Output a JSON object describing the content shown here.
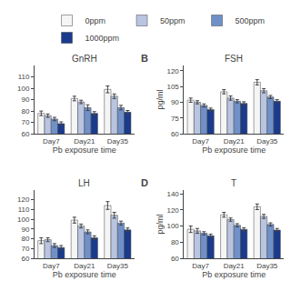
{
  "chart_data": [
    {
      "type": "bar",
      "title": "GnRH",
      "x_label": "Pb exposure time",
      "categories": [
        "Day7",
        "Day21",
        "Day35"
      ],
      "series": [
        {
          "name": "0ppm",
          "color": "#f5f5f5",
          "values": [
            78,
            91,
            99
          ],
          "errors": [
            2.0,
            2.0,
            3.0
          ]
        },
        {
          "name": "50ppm",
          "color": "#b8c4e0",
          "values": [
            76,
            88,
            93
          ],
          "errors": [
            1.5,
            1.5,
            2.0
          ]
        },
        {
          "name": "500ppm",
          "color": "#7090c8",
          "values": [
            73,
            83,
            83
          ],
          "errors": [
            1.5,
            2.5,
            2.0
          ]
        },
        {
          "name": "1000ppm",
          "color": "#1a3a8c",
          "values": [
            69,
            78,
            79
          ],
          "errors": [
            1.5,
            1.5,
            1.5
          ]
        }
      ],
      "ylim": [
        60,
        120
      ],
      "yticks": [
        60,
        70,
        80,
        90,
        100,
        110
      ],
      "grid": false,
      "legend": "top"
    },
    {
      "type": "bar",
      "title": "FSH",
      "x_label": "Pb exposure time",
      "y_label": "pg/ml",
      "annotations": [
        "B"
      ],
      "categories": [
        "Day7",
        "Day21",
        "Day35"
      ],
      "series": [
        {
          "name": "0ppm",
          "color": "#f5f5f5",
          "values": [
            92,
            100,
            109
          ],
          "errors": [
            2.0,
            2.0,
            2.5
          ]
        },
        {
          "name": "50ppm",
          "color": "#b8c4e0",
          "values": [
            90,
            94,
            101
          ],
          "errors": [
            1.5,
            2.0,
            2.0
          ]
        },
        {
          "name": "500ppm",
          "color": "#7090c8",
          "values": [
            87,
            91,
            95
          ],
          "errors": [
            1.5,
            1.5,
            1.5
          ]
        },
        {
          "name": "1000ppm",
          "color": "#1a3a8c",
          "values": [
            83,
            89,
            91
          ],
          "errors": [
            1.5,
            1.5,
            1.5
          ]
        }
      ],
      "ylim": [
        60,
        125
      ],
      "yticks": [
        60,
        75,
        90,
        105,
        120
      ],
      "grid": false,
      "legend": "top"
    },
    {
      "type": "bar",
      "title": "LH",
      "x_label": "Pb exposure time",
      "categories": [
        "Day7",
        "Day21",
        "Day35"
      ],
      "series": [
        {
          "name": "0ppm",
          "color": "#f5f5f5",
          "values": [
            78,
            99,
            114
          ],
          "errors": [
            3.0,
            3.0,
            4.0
          ]
        },
        {
          "name": "50ppm",
          "color": "#b8c4e0",
          "values": [
            79,
            93,
            104
          ],
          "errors": [
            2.0,
            2.0,
            3.0
          ]
        },
        {
          "name": "500ppm",
          "color": "#7090c8",
          "values": [
            73,
            87,
            96
          ],
          "errors": [
            2.0,
            2.0,
            2.0
          ]
        },
        {
          "name": "1000ppm",
          "color": "#1a3a8c",
          "values": [
            71,
            81,
            89
          ],
          "errors": [
            2.0,
            2.0,
            2.0
          ]
        }
      ],
      "ylim": [
        60,
        130
      ],
      "yticks": [
        60,
        70,
        80,
        90,
        100,
        110,
        120
      ],
      "grid": false,
      "legend": "top"
    },
    {
      "type": "bar",
      "title": "T",
      "x_label": "Pb exposure time",
      "y_label": "pg/ml",
      "annotations": [
        "D"
      ],
      "categories": [
        "Day7",
        "Day21",
        "Day35"
      ],
      "series": [
        {
          "name": "0ppm",
          "color": "#f5f5f5",
          "values": [
            96,
            114,
            124
          ],
          "errors": [
            4.0,
            3.0,
            3.5
          ]
        },
        {
          "name": "50ppm",
          "color": "#b8c4e0",
          "values": [
            94,
            108,
            112
          ],
          "errors": [
            3.0,
            2.0,
            2.5
          ]
        },
        {
          "name": "500ppm",
          "color": "#7090c8",
          "values": [
            91,
            101,
            102
          ],
          "errors": [
            2.0,
            2.0,
            2.0
          ]
        },
        {
          "name": "1000ppm",
          "color": "#1a3a8c",
          "values": [
            88,
            96,
            95
          ],
          "errors": [
            2.0,
            2.0,
            2.0
          ]
        }
      ],
      "ylim": [
        60,
        145
      ],
      "yticks": [
        60,
        80,
        100,
        120,
        140
      ],
      "grid": false,
      "legend": "top"
    }
  ]
}
